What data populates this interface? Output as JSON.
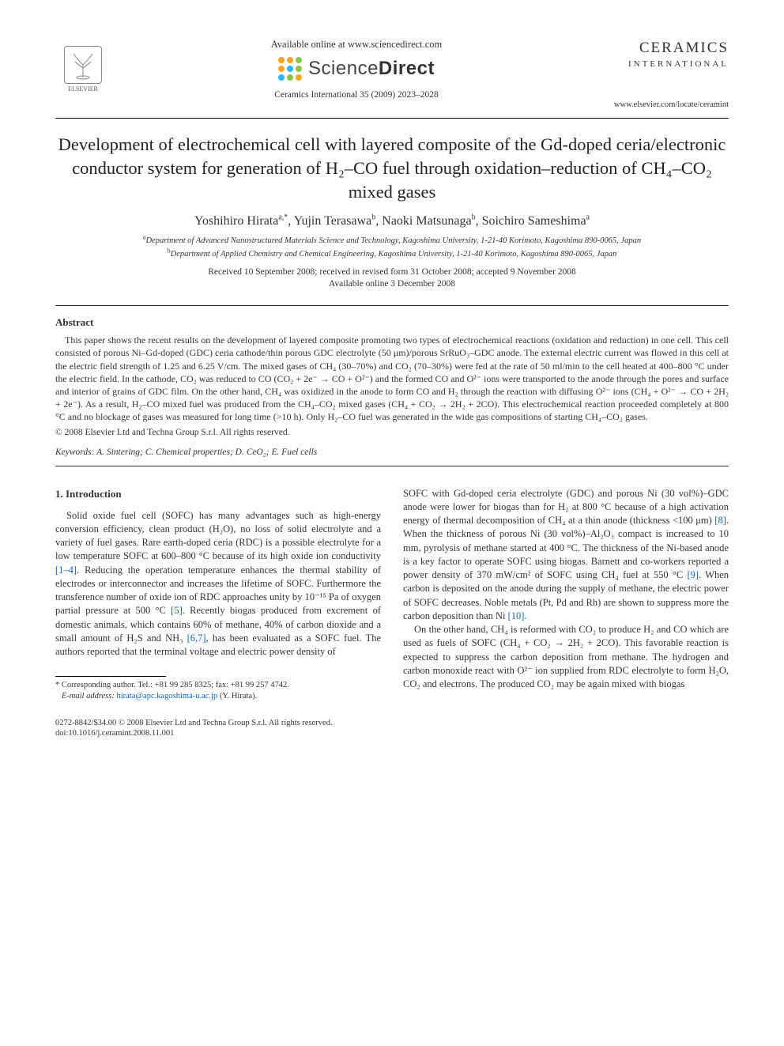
{
  "header": {
    "elsevier_label": "ELSEVIER",
    "available_online": "Available online at www.sciencedirect.com",
    "sd_name_light": "Science",
    "sd_name_bold": "Direct",
    "sd_dot_colors": [
      "#f5a623",
      "#f5a623",
      "#8bc34a",
      "#f5a623",
      "#29b6f6",
      "#8bc34a",
      "#29b6f6",
      "#8bc34a",
      "#f5a623"
    ],
    "journal_ref": "Ceramics International 35 (2009) 2023–2028",
    "journal_title": "CERAMICS",
    "journal_sub": "INTERNATIONAL",
    "journal_url": "www.elsevier.com/locate/ceramint"
  },
  "title": "Development of electrochemical cell with layered composite of the Gd-doped ceria/electronic conductor system for generation of H₂–CO fuel through oxidation–reduction of CH₄–CO₂ mixed gases",
  "authors": [
    {
      "name": "Yoshihiro Hirata",
      "sup": "a,*",
      "corr": true
    },
    {
      "name": "Yujin Terasawa",
      "sup": "b",
      "corr": false
    },
    {
      "name": "Naoki Matsunaga",
      "sup": "b",
      "corr": false
    },
    {
      "name": "Soichiro Sameshima",
      "sup": "a",
      "corr": false
    }
  ],
  "affiliations": [
    {
      "sup": "a",
      "text": "Department of Advanced Nanostructured Materials Science and Technology, Kagoshima University, 1-21-40 Korimoto, Kagoshima 890-0065, Japan"
    },
    {
      "sup": "b",
      "text": "Department of Applied Chemistry and Chemical Engineering, Kagoshima University, 1-21-40 Korimoto, Kagoshima 890-0065, Japan"
    }
  ],
  "dates_line1": "Received 10 September 2008; received in revised form 31 October 2008; accepted 9 November 2008",
  "dates_line2": "Available online 3 December 2008",
  "abstract_heading": "Abstract",
  "abstract_text": "This paper shows the recent results on the development of layered composite promoting two types of electrochemical reactions (oxidation and reduction) in one cell. This cell consisted of porous Ni–Gd-doped (GDC) ceria cathode/thin porous GDC electrolyte (50 μm)/porous SrRuO₃–GDC anode. The external electric current was flowed in this cell at the electric field strength of 1.25 and 6.25 V/cm. The mixed gases of CH₄ (30–70%) and CO₂ (70–30%) were fed at the rate of 50 ml/min to the cell heated at 400–800 °C under the electric field. In the cathode, CO₂ was reduced to CO (CO₂ + 2e⁻ → CO + O²⁻) and the formed CO and O²⁻ ions were transported to the anode through the pores and surface and interior of grains of GDC film. On the other hand, CH₄ was oxidized in the anode to form CO and H₂ through the reaction with diffusing O²⁻ ions (CH₄ + O²⁻ → CO + 2H₂ + 2e⁻). As a result, H₂–CO mixed fuel was produced from the CH₄–CO₂ mixed gases (CH₄ + CO₂ → 2H₂ + 2CO). This electrochemical reaction proceeded completely at 800 °C and no blockage of gases was measured for long time (>10 h). Only H₂–CO fuel was generated in the wide gas compositions of starting CH₄–CO₂ gases.",
  "copyright": "© 2008 Elsevier Ltd and Techna Group S.r.l. All rights reserved.",
  "keywords_label": "Keywords:",
  "keywords": "A. Sintering; C. Chemical properties; D. CeO₂; E. Fuel cells",
  "section1_heading": "1.  Introduction",
  "col_left_p1": "Solid oxide fuel cell (SOFC) has many advantages such as high-energy conversion efficiency, clean product (H₂O), no loss of solid electrolyte and a variety of fuel gases. Rare earth-doped ceria (RDC) is a possible electrolyte for a low temperature SOFC at 600–800 °C because of its high oxide ion conductivity ",
  "col_left_ref1": "[1–4]",
  "col_left_p1b": ". Reducing the operation temperature enhances the thermal stability of electrodes or interconnector and increases the lifetime of SOFC. Furthermore the transference number of oxide ion of RDC approaches unity by 10⁻¹⁵ Pa of oxygen partial pressure at 500 °C ",
  "col_left_ref2": "[5]",
  "col_left_p1c": ". Recently biogas produced from excrement of domestic animals, which contains 60% of methane, 40% of carbon dioxide and a small amount of H₂S and NH₃ ",
  "col_left_ref3": "[6,7]",
  "col_left_p1d": ", has been evaluated as a SOFC fuel. The authors reported that the terminal voltage and electric power density of",
  "col_right_p1a": "SOFC with Gd-doped ceria electrolyte (GDC) and porous Ni (30 vol%)–GDC anode were lower for biogas than for H₂ at 800 °C because of a high activation energy of thermal decomposition of CH₄ at a thin anode (thickness <100 μm) ",
  "col_right_ref1": "[8]",
  "col_right_p1b": ". When the thickness of porous Ni (30 vol%)–Al₂O₃ compact is increased to 10 mm, pyrolysis of methane started at 400 °C. The thickness of the Ni-based anode is a key factor to operate SOFC using biogas. Barnett and co-workers reported a power density of 370 mW/cm² of SOFC using CH₄ fuel at 550 °C ",
  "col_right_ref2": "[9]",
  "col_right_p1c": ". When carbon is deposited on the anode during the supply of methane, the electric power of SOFC decreases. Noble metals (Pt, Pd and Rh) are shown to suppress more the carbon deposition than Ni ",
  "col_right_ref3": "[10]",
  "col_right_p1d": ".",
  "col_right_p2": "On the other hand, CH₄ is reformed with CO₂ to produce H₂ and CO which are used as fuels of SOFC (CH₄ + CO₂ → 2H₂ + 2CO). This favorable reaction is expected to suppress the carbon deposition from methane. The hydrogen and carbon monoxide react with O²⁻ ion supplied from RDC electrolyte to form H₂O, CO₂ and electrons. The produced CO₂ may be again mixed with biogas",
  "footnote_corr": "* Corresponding author. Tel.: +81 99 285 8325; fax: +81 99 257 4742.",
  "footnote_email_label": "E-mail address:",
  "footnote_email": "hirata@apc.kagoshima-u.ac.jp",
  "footnote_email_who": "(Y. Hirata).",
  "bottom_line1": "0272-8842/$34.00 © 2008 Elsevier Ltd and Techna Group S.r.l. All rights reserved.",
  "bottom_line2": "doi:10.1016/j.ceramint.2008.11.001"
}
